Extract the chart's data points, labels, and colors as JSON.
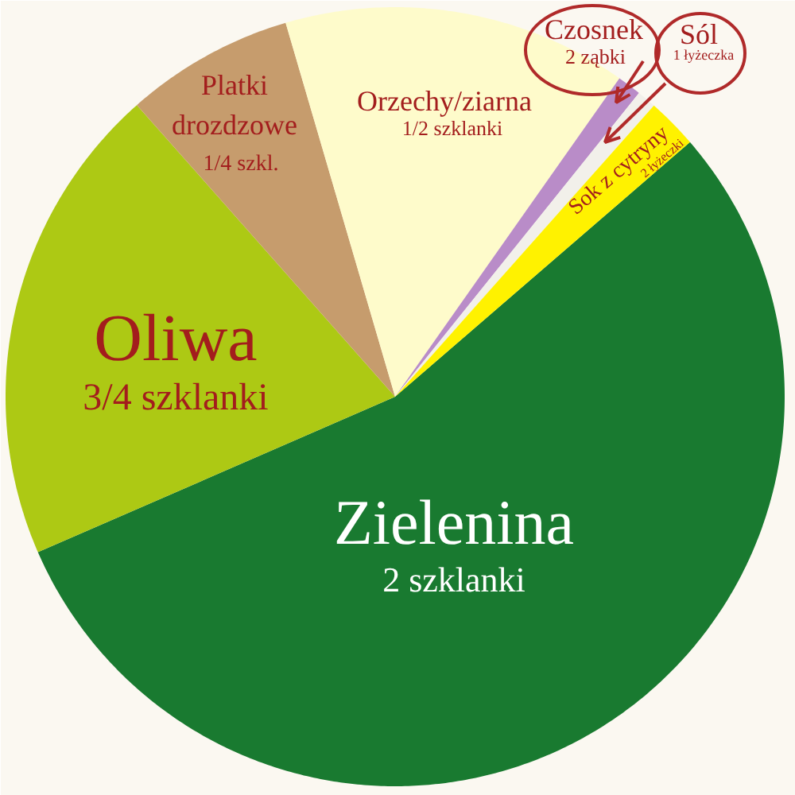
{
  "chart_data": {
    "type": "pie",
    "categories": [
      "Zielenina",
      "Oliwa",
      "Platki drozdzowe",
      "Orzechy/ziarna",
      "Czosnek",
      "Sól",
      "Sok z cytryny"
    ],
    "values": [
      54.8,
      20.0,
      7.0,
      14.3,
      1.0,
      0.8,
      2.1
    ],
    "colors": [
      "#197a30",
      "#adc914",
      "#c69c6d",
      "#fefbcb",
      "#b98cc8",
      "#f2f0ea",
      "#fff200"
    ],
    "annotations": [
      "2 szklanki",
      "3/4 szklanki",
      "1/4 szkl.",
      "1/2 szklanki",
      "2 ząbki",
      "1 łyżeczka",
      "2 łyżeczki"
    ]
  }
}
